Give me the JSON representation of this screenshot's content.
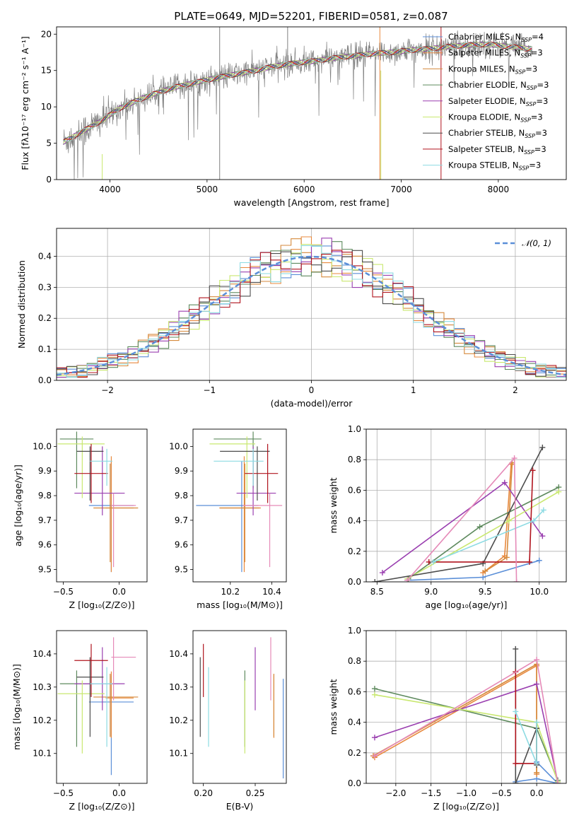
{
  "title": "PLATE=0649, MJD=52201, FIBERID=0581, z=0.087",
  "colors": {
    "chabrier_miles": "#5b8fd8",
    "salpeter_miles": "#e8893e",
    "kroupa_miles": "#d68a3c",
    "chabrier_elodie": "#5e8a5e",
    "salpeter_elodie": "#9a3fb0",
    "kroupa_elodie": "#c9e870",
    "chabrier_stelib": "#4d4d4d",
    "salpeter_stelib": "#b0141e",
    "kroupa_stelib": "#8ddbe3",
    "pink": "#e58ab8",
    "data": "#808080",
    "gauss": "#5b8fd8"
  },
  "legend": [
    {
      "key": "chabrier_miles",
      "pre": "Chabrier MILES, N",
      "sub": "SSP",
      "post": "=4"
    },
    {
      "key": "salpeter_miles",
      "pre": "Salpeter MILES, N",
      "sub": "SSP",
      "post": "=3"
    },
    {
      "key": "kroupa_miles",
      "pre": "Kroupa MILES, N",
      "sub": "SSP",
      "post": "=3"
    },
    {
      "key": "chabrier_elodie",
      "pre": "Chabrier ELODIE, N",
      "sub": "SSP",
      "post": "=3"
    },
    {
      "key": "salpeter_elodie",
      "pre": "Salpeter ELODIE, N",
      "sub": "SSP",
      "post": "=3"
    },
    {
      "key": "kroupa_elodie",
      "pre": "Kroupa ELODIE, N",
      "sub": "SSP",
      "post": "=3"
    },
    {
      "key": "chabrier_stelib",
      "pre": "Chabrier STELIB, N",
      "sub": "SSP",
      "post": "=3"
    },
    {
      "key": "salpeter_stelib",
      "pre": "Salpeter STELIB, N",
      "sub": "SSP",
      "post": "=3"
    },
    {
      "key": "kroupa_stelib",
      "pre": "Kroupa STELIB, N",
      "sub": "SSP",
      "post": "=3"
    }
  ],
  "chart_data": [
    {
      "id": "spectrum",
      "type": "line",
      "xlabel": "wavelength [Angstrom, rest frame]",
      "ylabel": "Flux [fλ10⁻¹⁷ erg cm⁻² s⁻¹ A⁻¹]",
      "xlim": [
        3450,
        8700
      ],
      "ylim": [
        0,
        21
      ],
      "xticks": [
        4000,
        5000,
        6000,
        7000,
        8000
      ],
      "yticks": [
        0,
        5,
        10,
        15,
        20
      ],
      "continuum_x": [
        3500,
        3700,
        3900,
        4100,
        4300,
        4500,
        4700,
        4900,
        5100,
        5300,
        5500,
        5700,
        5900,
        6100,
        6300,
        6500,
        6700,
        6900,
        7100,
        7300,
        7500,
        7700,
        7900,
        8100,
        8300
      ],
      "continuum_y": [
        5.0,
        6.5,
        8.0,
        9.8,
        11.0,
        12.0,
        12.8,
        13.4,
        14.0,
        14.5,
        15.0,
        15.6,
        16.0,
        16.3,
        16.7,
        17.0,
        17.3,
        17.5,
        17.8,
        18.0,
        18.3,
        18.5,
        18.6,
        18.3,
        18.0
      ]
    },
    {
      "id": "residuals",
      "type": "histogram",
      "xlabel": "(data-model)/error",
      "ylabel": "Normed distribution",
      "xlim": [
        -2.5,
        2.5
      ],
      "ylim": [
        0,
        0.49
      ],
      "xticks": [
        -2,
        -1,
        0,
        1,
        2
      ],
      "xtick_labels": [
        "−2",
        "−1",
        "0",
        "1",
        "2"
      ],
      "yticks": [
        0.0,
        0.1,
        0.2,
        0.3,
        0.4
      ],
      "gauss_label": "𝒩(0, 1)",
      "bin_width": 0.1
    },
    {
      "id": "age_vs_Z",
      "type": "errorbar",
      "xlabel": "Z [log₁₀(Z/Z⊙)]",
      "ylabel": "age  [log₁₀(age/yr)]",
      "xlim": [
        -0.56,
        0.25
      ],
      "ylim": [
        9.45,
        10.07
      ],
      "xticks": [
        -0.5,
        0.0
      ],
      "xtick_labels": [
        "−0.5",
        "0.0"
      ],
      "yticks": [
        9.5,
        9.6,
        9.7,
        9.8,
        9.9,
        10.0
      ]
    },
    {
      "id": "age_vs_mass",
      "type": "errorbar",
      "xlabel": "mass [log₁₀(M/M⊙)]",
      "ylabel": "",
      "xlim": [
        10.02,
        10.47
      ],
      "ylim": [
        9.45,
        10.07
      ],
      "xticks": [
        10.2,
        10.4
      ],
      "xtick_labels": [
        "10.2",
        "10.4"
      ],
      "yticks": [
        9.5,
        9.6,
        9.7,
        9.8,
        9.9,
        10.0
      ]
    },
    {
      "id": "mass_weight_vs_age",
      "type": "line",
      "xlabel": "age  [log₁₀(age/yr)]",
      "ylabel": "mass weight",
      "xlim": [
        8.4,
        10.25
      ],
      "ylim": [
        0,
        1.0
      ],
      "xticks": [
        8.5,
        9.0,
        9.5,
        10.0
      ],
      "xtick_labels": [
        "8.5",
        "9.0",
        "9.5",
        "10.0"
      ],
      "yticks": [
        0.0,
        0.2,
        0.4,
        0.6,
        0.8,
        1.0
      ]
    },
    {
      "id": "mass_vs_Z",
      "type": "errorbar",
      "xlabel": "Z [log₁₀(Z/Z⊙)]",
      "ylabel": "mass [log₁₀(M/M⊙)]",
      "xlim": [
        -0.56,
        0.25
      ],
      "ylim": [
        10.01,
        10.47
      ],
      "xticks": [
        -0.5,
        0.0
      ],
      "xtick_labels": [
        "−0.5",
        "0.0"
      ],
      "yticks": [
        10.1,
        10.2,
        10.3,
        10.4
      ]
    },
    {
      "id": "mass_vs_ebv",
      "type": "errorbar",
      "xlabel": "E(B-V)",
      "ylabel": "",
      "xlim": [
        0.19,
        0.28
      ],
      "ylim": [
        10.01,
        10.47
      ],
      "xticks": [
        0.2,
        0.25
      ],
      "xtick_labels": [
        "0.20",
        "0.25"
      ],
      "yticks": [
        10.1,
        10.2,
        10.3,
        10.4
      ]
    },
    {
      "id": "mass_weight_vs_Z",
      "type": "line",
      "xlabel": "Z [log₁₀(Z/Z⊙)]",
      "ylabel": "mass weight",
      "xlim": [
        -2.42,
        0.42
      ],
      "ylim": [
        0,
        1.0
      ],
      "xticks": [
        -2.0,
        -1.5,
        -1.0,
        -0.5,
        0.0
      ],
      "xtick_labels": [
        "−2.0",
        "−1.5",
        "−1.0",
        "−0.5",
        "0.0"
      ],
      "yticks": [
        0.0,
        0.2,
        0.4,
        0.6,
        0.8,
        1.0
      ]
    }
  ],
  "models": [
    {
      "key": "chabrier_miles",
      "Z": -0.07,
      "Zlo": 0.2,
      "Zhi": 0.2,
      "age": 9.76,
      "agelo": 0.27,
      "agehi": 0.18,
      "mass": 10.255,
      "masslo": 0.22,
      "masshi": 0.08,
      "ebv": 0.277,
      "ebvmlo": 0.23,
      "ebvmhi": 0.07,
      "mw_age": [
        [
          10.0,
          0.14
        ],
        [
          9.48,
          0.03
        ],
        [
          8.78,
          0.01
        ]
      ],
      "mw_Z": [
        [
          0.0,
          0.14
        ],
        [
          0.3,
          0.0
        ],
        [
          0.0,
          0.03
        ],
        [
          -0.3,
          0.01
        ]
      ]
    },
    {
      "key": "salpeter_miles",
      "Z": -0.07,
      "Zlo": 0.05,
      "Zhi": 0.2,
      "age": 9.75,
      "agelo": 0.26,
      "agehi": 0.21,
      "mass": 10.267,
      "masslo": 0.12,
      "masshi": 0.08,
      "ebv": 0.268,
      "ebvmlo": 0.12,
      "ebvmhi": 0.07,
      "mw_age": [
        [
          9.48,
          0.06
        ],
        [
          9.68,
          0.17
        ],
        [
          9.74,
          0.77
        ]
      ],
      "mw_Z": [
        [
          -2.3,
          0.17
        ],
        [
          0.0,
          0.77
        ],
        [
          0.0,
          0.06
        ]
      ]
    },
    {
      "key": "kroupa_miles",
      "Z": -0.08,
      "Zlo": 0.15,
      "Zhi": 0.25,
      "age": 9.75,
      "agelo": 0.22,
      "agehi": 0.18,
      "mass": 10.27,
      "masslo": 0.12,
      "masshi": 0.07,
      "ebv": 0.268,
      "ebvmlo": 0.12,
      "ebvmhi": 0.07,
      "mw_age": [
        [
          9.5,
          0.07
        ],
        [
          9.7,
          0.16
        ],
        [
          9.75,
          0.78
        ]
      ],
      "mw_Z": [
        [
          -2.32,
          0.18
        ],
        [
          0.0,
          0.78
        ],
        [
          0.0,
          0.07
        ]
      ]
    },
    {
      "key": "chabrier_elodie",
      "Z": -0.38,
      "Zlo": 0.15,
      "Zhi": 0.15,
      "age": 10.03,
      "agelo": 0.2,
      "agehi": 0.03,
      "mass": 10.31,
      "masslo": 0.19,
      "masshi": 0.04,
      "ebv": 0.24,
      "ebvmlo": 0.19,
      "ebvmhi": 0.04,
      "mw_age": [
        [
          8.79,
          0.02
        ],
        [
          9.45,
          0.36
        ],
        [
          10.18,
          0.62
        ]
      ],
      "mw_Z": [
        [
          -2.3,
          0.62
        ],
        [
          0.0,
          0.36
        ],
        [
          0.3,
          0.02
        ]
      ]
    },
    {
      "key": "salpeter_elodie",
      "Z": -0.15,
      "Zlo": 0.25,
      "Zhi": 0.2,
      "age": 9.81,
      "agelo": 0.09,
      "agehi": 0.19,
      "mass": 10.31,
      "masslo": 0.08,
      "masshi": 0.11,
      "ebv": 0.25,
      "ebvmlo": 0.08,
      "ebvmhi": 0.11,
      "mw_age": [
        [
          8.55,
          0.06
        ],
        [
          9.68,
          0.65
        ],
        [
          10.03,
          0.3
        ]
      ],
      "mw_Z": [
        [
          -2.3,
          0.3
        ],
        [
          0.0,
          0.65
        ],
        [
          0.3,
          0.01
        ]
      ]
    },
    {
      "key": "kroupa_elodie",
      "Z": -0.33,
      "Zlo": 0.22,
      "Zhi": 0.2,
      "age": 10.01,
      "agelo": 0.22,
      "agehi": 0.03,
      "mass": 10.28,
      "masslo": 0.18,
      "masshi": 0.04,
      "ebv": 0.24,
      "ebvmlo": 0.18,
      "ebvmhi": 0.04,
      "mw_age": [
        [
          8.78,
          0.02
        ],
        [
          9.72,
          0.4
        ],
        [
          10.18,
          0.59
        ]
      ],
      "mw_Z": [
        [
          -2.3,
          0.58
        ],
        [
          0.0,
          0.4
        ],
        [
          0.3,
          0.01
        ]
      ]
    },
    {
      "key": "chabrier_stelib",
      "Z": -0.26,
      "Zlo": 0.12,
      "Zhi": 0.12,
      "age": 9.98,
      "agelo": 0.2,
      "agehi": 0.02,
      "mass": 10.33,
      "masslo": 0.18,
      "masshi": 0.06,
      "ebv": 0.197,
      "ebvmlo": 0.18,
      "ebvmhi": 0.06,
      "mw_age": [
        [
          8.48,
          0.0
        ],
        [
          9.48,
          0.12
        ],
        [
          10.03,
          0.88
        ]
      ],
      "mw_Z": [
        [
          -0.3,
          0.88
        ],
        [
          -0.3,
          0.0
        ],
        [
          0.0,
          0.36
        ],
        [
          0.0,
          0.12
        ]
      ]
    },
    {
      "key": "salpeter_stelib",
      "Z": -0.25,
      "Zlo": 0.15,
      "Zhi": 0.15,
      "age": 9.89,
      "agelo": 0.12,
      "agehi": 0.12,
      "mass": 10.38,
      "masslo": 0.11,
      "masshi": 0.05,
      "ebv": 0.2,
      "ebvmlo": 0.11,
      "ebvmhi": 0.05,
      "mw_age": [
        [
          8.98,
          0.13
        ],
        [
          9.91,
          0.13
        ],
        [
          9.94,
          0.73
        ]
      ],
      "mw_Z": [
        [
          -0.3,
          0.73
        ],
        [
          -0.3,
          0.13
        ],
        [
          0.0,
          0.13
        ]
      ]
    },
    {
      "key": "kroupa_stelib",
      "Z": -0.11,
      "Zlo": 0.15,
      "Zhi": 0.05,
      "age": 9.94,
      "agelo": 0.1,
      "agehi": 0.05,
      "mass": 10.31,
      "masslo": 0.19,
      "masshi": 0.05,
      "ebv": 0.205,
      "ebvmlo": 0.19,
      "ebvmhi": 0.05,
      "mw_age": [
        [
          9.02,
          0.13
        ],
        [
          9.95,
          0.4
        ],
        [
          10.04,
          0.47
        ]
      ],
      "mw_Z": [
        [
          -0.3,
          0.47
        ],
        [
          0.0,
          0.13
        ],
        [
          0.0,
          0.4
        ]
      ]
    },
    {
      "key": "pink",
      "Z": -0.05,
      "Zlo": 0.02,
      "Zhi": 0.2,
      "age": 9.76,
      "agelo": 0.25,
      "agehi": 0.05,
      "mass": 10.39,
      "masslo": 0.13,
      "masshi": 0.06,
      "ebv": 0.265,
      "ebvmlo": 0.13,
      "ebvmhi": 0.06,
      "mw_age": [
        [
          8.78,
          0.01
        ],
        [
          9.77,
          0.81
        ],
        [
          9.79,
          0.0
        ]
      ],
      "mw_Z": [
        [
          -2.3,
          0.18
        ],
        [
          0.0,
          0.81
        ],
        [
          0.3,
          0.0
        ]
      ]
    }
  ]
}
